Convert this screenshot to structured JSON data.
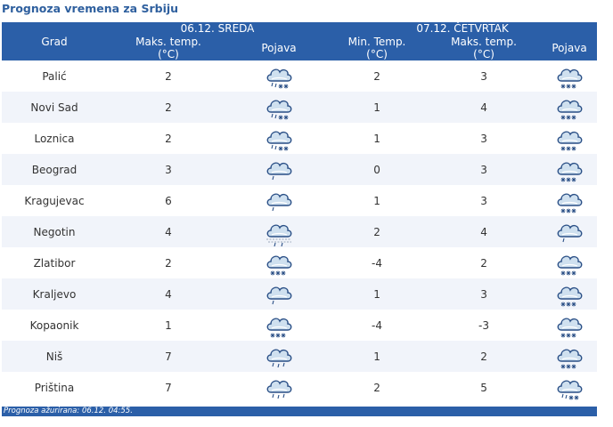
{
  "title": "Prognoza vremena za Srbiju",
  "header": {
    "day1": "06.12. SREDA",
    "day2": "07.12. ČETVRTAK",
    "col_city": "Grad",
    "col_max1": "Maks. temp.",
    "col_unit": "(°C)",
    "col_wx": "Pojava",
    "col_min2": "Min. Temp.",
    "col_max2": "Maks. temp."
  },
  "rows": [
    {
      "city": "Palić",
      "max1": "2",
      "wx1": "cloud-rain-snow-icon",
      "min2": "2",
      "max2": "3",
      "wx2": "cloud-snow-icon"
    },
    {
      "city": "Novi Sad",
      "max1": "2",
      "wx1": "cloud-rain-snow-icon",
      "min2": "1",
      "max2": "4",
      "wx2": "cloud-snow-icon"
    },
    {
      "city": "Loznica",
      "max1": "2",
      "wx1": "cloud-rain-snow-icon",
      "min2": "1",
      "max2": "3",
      "wx2": "cloud-snow-icon"
    },
    {
      "city": "Beograd",
      "max1": "3",
      "wx1": "cloud-drizzle-icon",
      "min2": "0",
      "max2": "3",
      "wx2": "cloud-snow-icon"
    },
    {
      "city": "Kragujevac",
      "max1": "6",
      "wx1": "cloud-drizzle-icon",
      "min2": "1",
      "max2": "3",
      "wx2": "cloud-snow-icon"
    },
    {
      "city": "Negotin",
      "max1": "4",
      "wx1": "cloud-fog-rain-icon",
      "min2": "2",
      "max2": "4",
      "wx2": "cloud-drizzle-icon"
    },
    {
      "city": "Zlatibor",
      "max1": "2",
      "wx1": "cloud-snow-icon",
      "min2": "-4",
      "max2": "2",
      "wx2": "cloud-snow-icon"
    },
    {
      "city": "Kraljevo",
      "max1": "4",
      "wx1": "cloud-drizzle-icon",
      "min2": "1",
      "max2": "3",
      "wx2": "cloud-snow-icon"
    },
    {
      "city": "Kopaonik",
      "max1": "1",
      "wx1": "cloud-snow-icon",
      "min2": "-4",
      "max2": "-3",
      "wx2": "cloud-snow-icon"
    },
    {
      "city": "Niš",
      "max1": "7",
      "wx1": "cloud-rain-icon",
      "min2": "1",
      "max2": "2",
      "wx2": "cloud-snow-icon"
    },
    {
      "city": "Priština",
      "max1": "7",
      "wx1": "cloud-rain-icon",
      "min2": "2",
      "max2": "5",
      "wx2": "cloud-rain-snow-icon"
    }
  ],
  "footer": {
    "label": "Prognoza ažurirana:",
    "value": "06.12. 04:55."
  },
  "colors": {
    "header_bg": "#2b5fa8",
    "title": "#2e5f9e",
    "row_alt": "#f1f4fa"
  }
}
